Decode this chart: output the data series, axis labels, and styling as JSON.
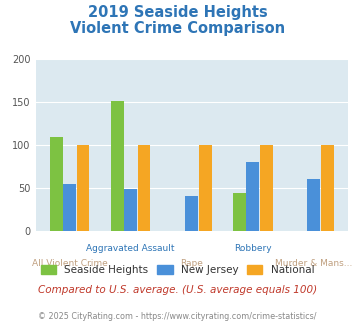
{
  "title_line1": "2019 Seaside Heights",
  "title_line2": "Violent Crime Comparison",
  "categories": [
    "All Violent Crime",
    "Aggravated Assault",
    "Rape",
    "Robbery",
    "Murder & Mans..."
  ],
  "xtick_top": [
    "",
    "Aggravated Assault",
    "",
    "Robbery",
    ""
  ],
  "xtick_bot": [
    "All Violent Crime",
    "",
    "Rape",
    "",
    "Murder & Mans..."
  ],
  "series": {
    "Seaside Heights": [
      110,
      152,
      0,
      44,
      0
    ],
    "New Jersey": [
      55,
      49,
      41,
      80,
      61
    ],
    "National": [
      100,
      100,
      100,
      100,
      100
    ]
  },
  "colors": {
    "Seaside Heights": "#7dc242",
    "New Jersey": "#4a90d9",
    "National": "#f5a623"
  },
  "ylim": [
    0,
    200
  ],
  "yticks": [
    0,
    50,
    100,
    150,
    200
  ],
  "background_color": "#dce9f0",
  "title_color": "#2e75b6",
  "xtick_color_top": "#2e75b6",
  "xtick_color_bot": "#c0a080",
  "footer_text": "Compared to U.S. average. (U.S. average equals 100)",
  "copyright_text": "© 2025 CityRating.com - https://www.cityrating.com/crime-statistics/",
  "footer_color": "#c0392b",
  "copyright_color": "#888888",
  "bar_width": 0.22
}
